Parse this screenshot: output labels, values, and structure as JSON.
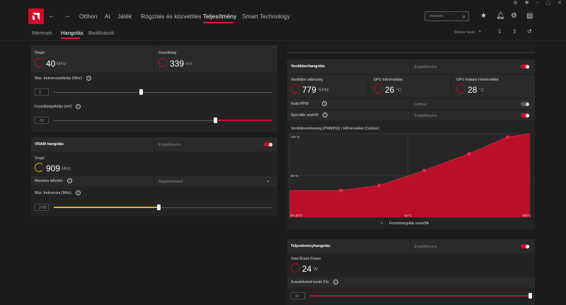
{
  "nav": {
    "items": [
      "Otthon",
      "AI",
      "Játék",
      "Rögzítés és közvetítés",
      "Teljesítmény",
      "Smart Technology"
    ],
    "search_placeholder": "Keresés"
  },
  "subnav": {
    "items": [
      "Mérések",
      "Hangolás",
      "Beállítások"
    ],
    "stress_label": "Stressz teszt"
  },
  "gpu_tuning": {
    "clock_label": "Órajel",
    "clock_value": "40",
    "clock_unit": "MHz",
    "voltage_label": "Feszültség",
    "voltage_value": "339",
    "voltage_unit": "mV",
    "max_freq_offset_label": "Max. frekvenciaeltolás (MHz)",
    "max_freq_offset_value": "0",
    "max_freq_offset_pct": 0.4,
    "voltage_offset_label": "Feszültségeltolás (mV)",
    "voltage_offset_value": "-50",
    "voltage_offset_pct": 0.74
  },
  "vram": {
    "title": "VRAM hangolás",
    "state": "Engedélyezve",
    "clock_label": "Órajel",
    "clock_value": "909",
    "clock_unit": "MHz",
    "memory_timing_label": "Memória időzítés",
    "memory_timing_value": "Alapértelmezett",
    "max_freq_label": "Max. frekvencia (MHz)",
    "max_freq_value": "2750",
    "max_freq_pct": 0.48
  },
  "fan": {
    "title": "Ventilátorhangolás",
    "state": "Engedélyezve",
    "speed_label": "Ventilátor sebesség",
    "speed_value": "779",
    "speed_unit": "RPM",
    "gpu_temp_label": "GPU hőmérséklet",
    "gpu_temp_value": "26",
    "gpu_temp_unit": "°C",
    "hotspot_label": "GPU hotspot hőmérséklet",
    "hotspot_value": "28",
    "hotspot_unit": "°C",
    "zero_rpm_label": "Nulla RPM",
    "zero_rpm_state": "Letiltva",
    "special_label": "Speciális vezérlő",
    "special_state": "Engedélyezve",
    "curve_title": "Ventilátorsebesség (PWM(%)) / Hőmérséklet (Celsius)",
    "curve_footer": "Finomhangolás vezérlők"
  },
  "chart_data": {
    "type": "area",
    "title": "Ventilátorsebesség (PWM(%)) / Hőmérséklet (Celsius)",
    "xlabel": "",
    "ylabel": "",
    "x_ticks": [
      "0% 25°C",
      "62°C",
      "100°C"
    ],
    "y_ticks": [
      "100 %",
      "50 %"
    ],
    "xlim": [
      25,
      100
    ],
    "ylim": [
      0,
      100
    ],
    "x": [
      25,
      41,
      53,
      67,
      81,
      93
    ],
    "series": [
      {
        "values": [
          32,
          32,
          38,
          56,
          76,
          96
        ]
      }
    ],
    "color": "#b8102a",
    "grid": true
  },
  "power": {
    "title": "Teljesítményhangolás",
    "state": "Engedélyezve",
    "tbp_label": "Total Board Power",
    "tbp_value": "24",
    "tbp_unit": "W",
    "limit_label": "Áramfelvételi korlát (%)",
    "limit_value": "10",
    "limit_pct": 1.0
  },
  "colors": {
    "accent": "#d4092c",
    "yellow": "#e8b21c"
  }
}
